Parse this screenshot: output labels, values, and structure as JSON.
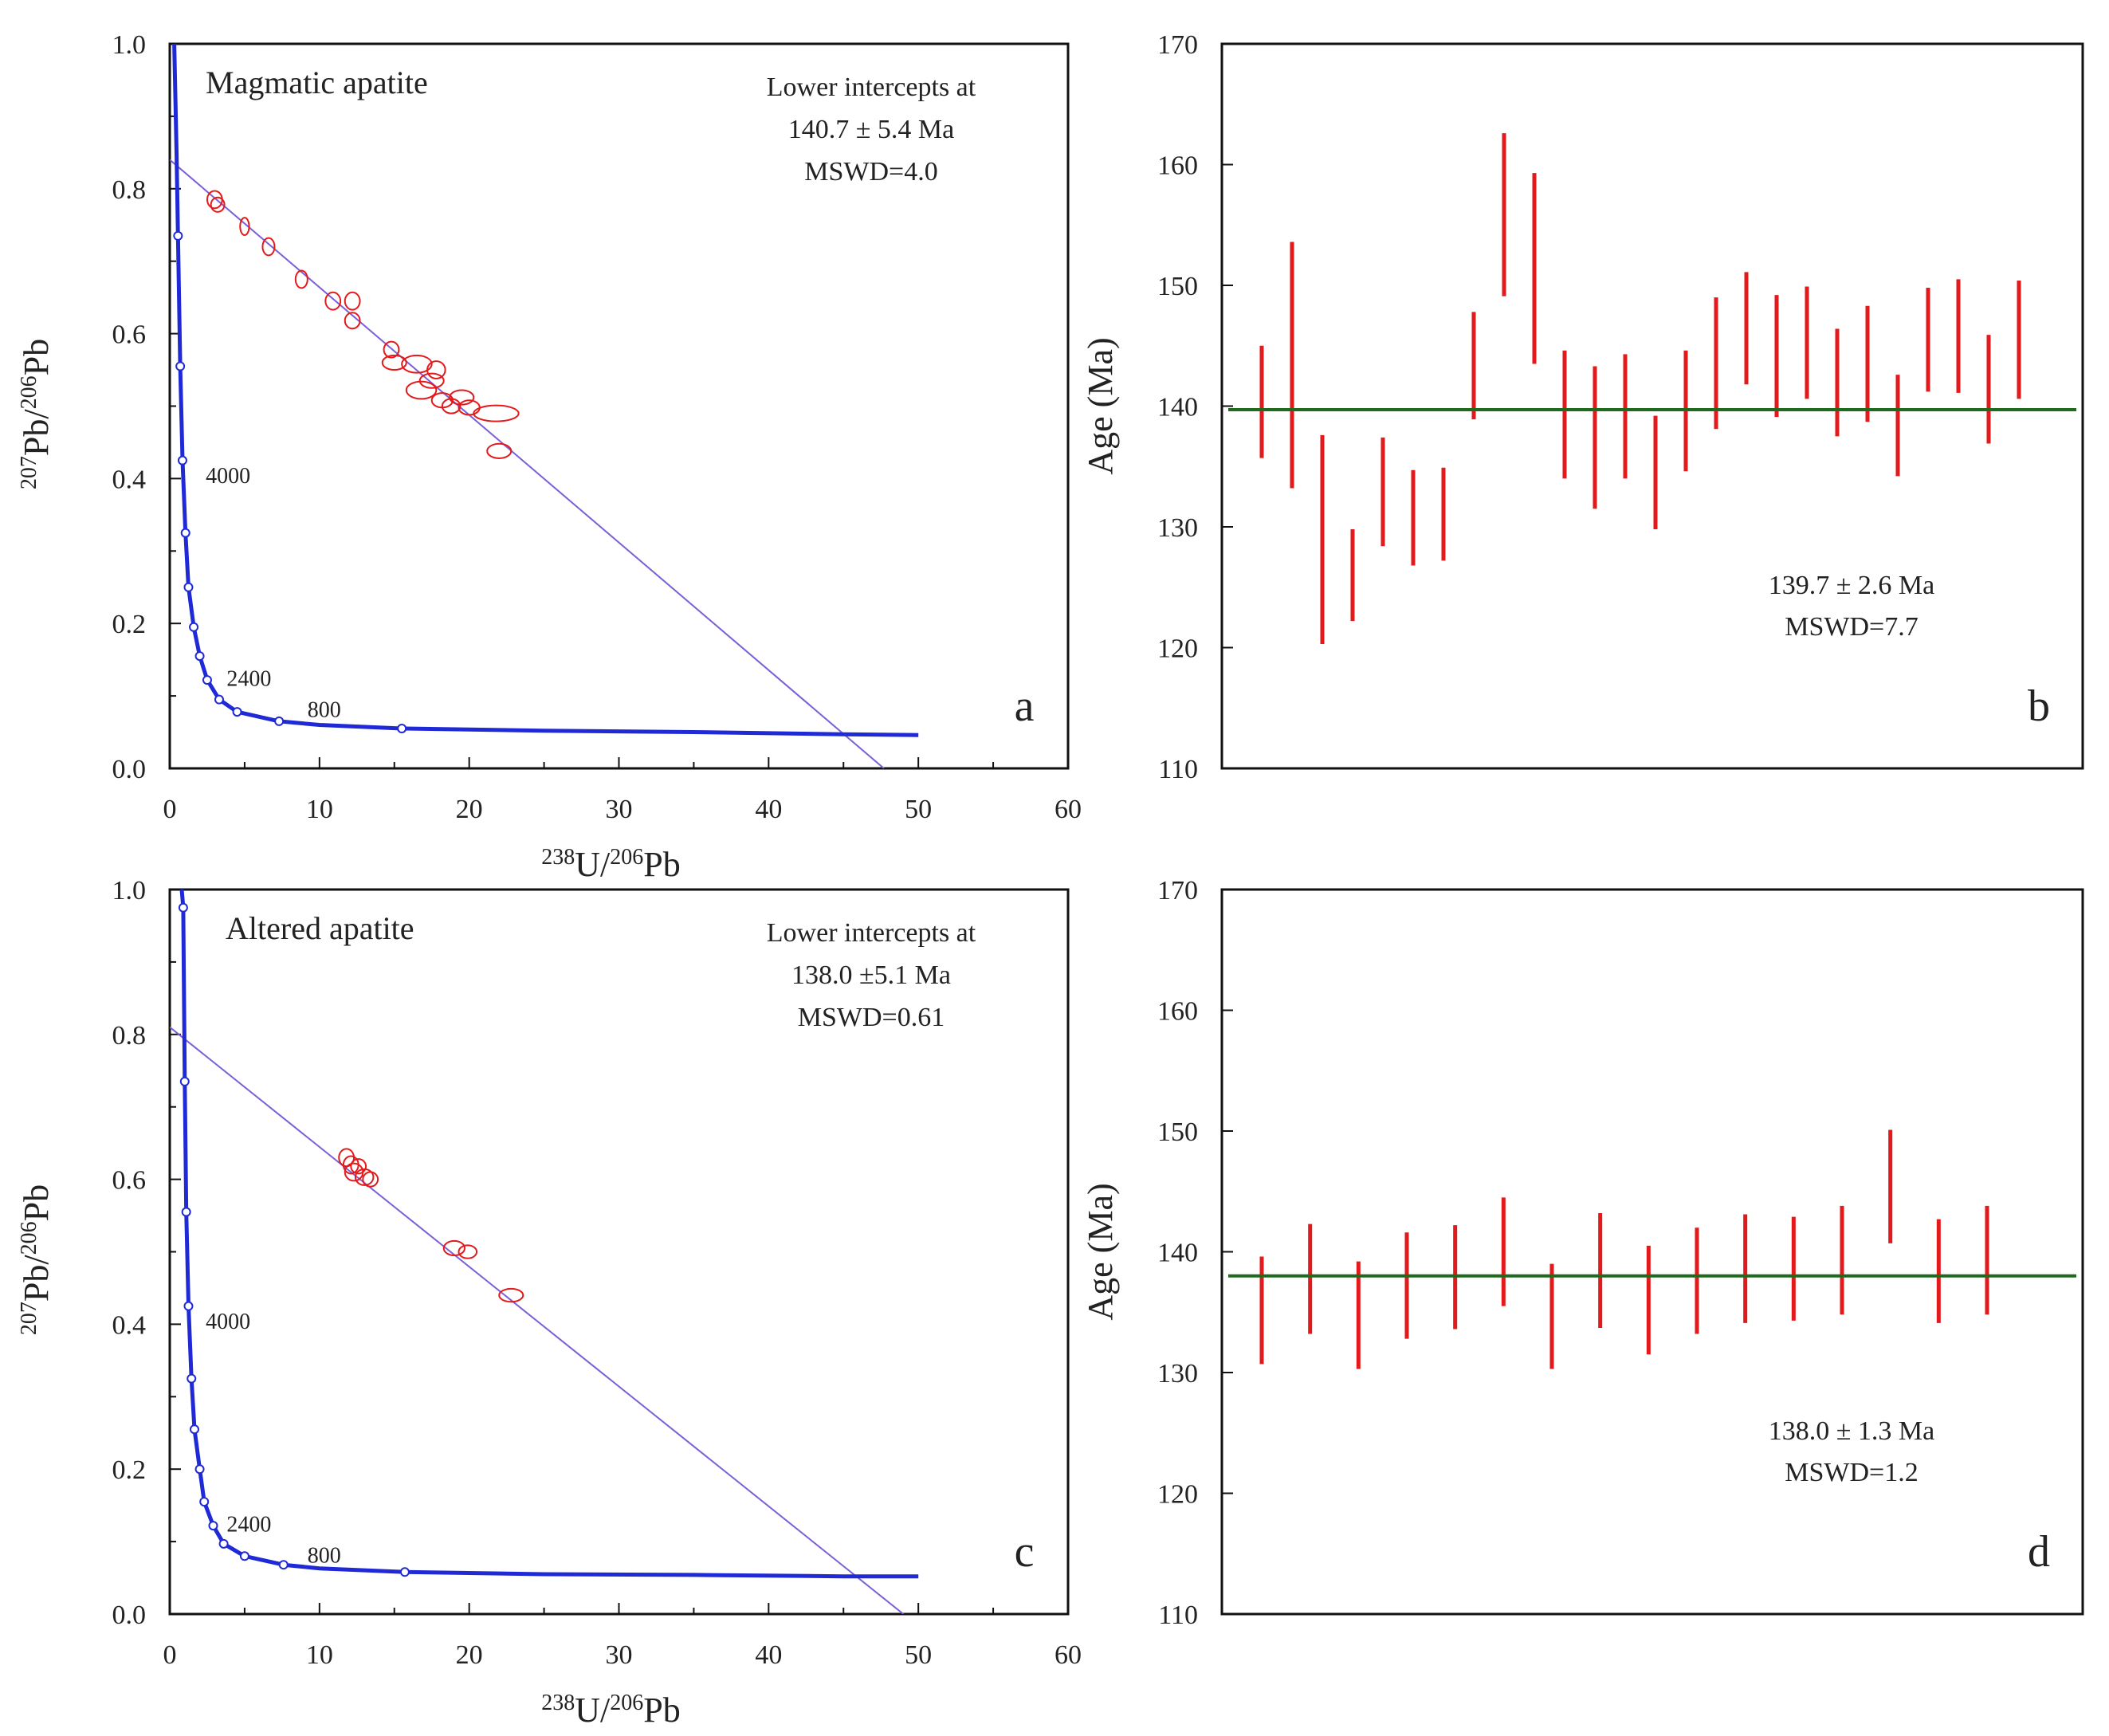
{
  "chart_data": [
    {
      "id": "a",
      "type": "scatter",
      "title": "Magmatic apatite",
      "panel_label": "a",
      "xlabel": {
        "sup1": "238",
        "main1": "U/",
        "sup2": "206",
        "main2": "Pb"
      },
      "ylabel": {
        "sup1": "207",
        "main1": "Pb/",
        "sup2": "206",
        "main2": "Pb"
      },
      "xlim": [
        0,
        60
      ],
      "ylim": [
        0,
        1.0
      ],
      "xticks": [
        0,
        10,
        20,
        30,
        40,
        50,
        60
      ],
      "yticks": [
        0.0,
        0.2,
        0.4,
        0.6,
        0.8,
        1.0
      ],
      "ytick_labels": [
        "0.0",
        "0.2",
        "0.4",
        "0.6",
        "0.8",
        "1.0"
      ],
      "xtick_labels": [
        "0",
        "10",
        "20",
        "30",
        "40",
        "50",
        "60"
      ],
      "annotation_lines": [
        "Lower intercepts at",
        "140.7 ± 5.4 Ma",
        "MSWD=4.0"
      ],
      "regression_line": {
        "y_intercept": 0.84,
        "x_at_zero": 47.7
      },
      "concordia_labels": [
        {
          "text": "4000",
          "x": 2.4,
          "y": 0.405
        },
        {
          "text": "2400",
          "x": 3.8,
          "y": 0.125
        },
        {
          "text": "800",
          "x": 9.2,
          "y": 0.082
        }
      ],
      "concordia_markers": [
        [
          0.55,
          0.735
        ],
        [
          0.7,
          0.555
        ],
        [
          0.85,
          0.425
        ],
        [
          1.05,
          0.325
        ],
        [
          1.25,
          0.25
        ],
        [
          1.6,
          0.195
        ],
        [
          2.0,
          0.155
        ],
        [
          2.5,
          0.122
        ],
        [
          3.3,
          0.095
        ],
        [
          4.5,
          0.078
        ],
        [
          7.3,
          0.065
        ],
        [
          15.5,
          0.055
        ]
      ],
      "concordia_curve": [
        [
          0.3,
          1.0
        ],
        [
          0.45,
          0.85
        ],
        [
          0.55,
          0.735
        ],
        [
          0.7,
          0.555
        ],
        [
          0.85,
          0.425
        ],
        [
          1.05,
          0.325
        ],
        [
          1.25,
          0.25
        ],
        [
          1.6,
          0.195
        ],
        [
          2.0,
          0.155
        ],
        [
          2.5,
          0.122
        ],
        [
          3.3,
          0.095
        ],
        [
          4.5,
          0.078
        ],
        [
          7.3,
          0.065
        ],
        [
          10.0,
          0.06
        ],
        [
          15.5,
          0.055
        ],
        [
          25,
          0.052
        ],
        [
          35,
          0.05
        ],
        [
          45,
          0.047
        ],
        [
          50,
          0.046
        ]
      ],
      "ellipses": [
        {
          "x": 3.0,
          "y": 0.785,
          "rx": 0.5,
          "ry": 0.012
        },
        {
          "x": 3.2,
          "y": 0.778,
          "rx": 0.45,
          "ry": 0.01
        },
        {
          "x": 5.0,
          "y": 0.748,
          "rx": 0.3,
          "ry": 0.012
        },
        {
          "x": 6.6,
          "y": 0.72,
          "rx": 0.4,
          "ry": 0.012
        },
        {
          "x": 8.8,
          "y": 0.675,
          "rx": 0.4,
          "ry": 0.012
        },
        {
          "x": 10.9,
          "y": 0.645,
          "rx": 0.5,
          "ry": 0.012
        },
        {
          "x": 12.2,
          "y": 0.645,
          "rx": 0.5,
          "ry": 0.012
        },
        {
          "x": 12.2,
          "y": 0.618,
          "rx": 0.5,
          "ry": 0.011
        },
        {
          "x": 14.8,
          "y": 0.578,
          "rx": 0.5,
          "ry": 0.011
        },
        {
          "x": 15.0,
          "y": 0.56,
          "rx": 0.8,
          "ry": 0.01
        },
        {
          "x": 16.5,
          "y": 0.558,
          "rx": 1.0,
          "ry": 0.012
        },
        {
          "x": 16.8,
          "y": 0.522,
          "rx": 1.0,
          "ry": 0.012
        },
        {
          "x": 17.5,
          "y": 0.535,
          "rx": 0.8,
          "ry": 0.01
        },
        {
          "x": 17.8,
          "y": 0.55,
          "rx": 0.6,
          "ry": 0.012
        },
        {
          "x": 18.2,
          "y": 0.508,
          "rx": 0.7,
          "ry": 0.01
        },
        {
          "x": 18.8,
          "y": 0.5,
          "rx": 0.6,
          "ry": 0.01
        },
        {
          "x": 19.5,
          "y": 0.512,
          "rx": 0.8,
          "ry": 0.01
        },
        {
          "x": 20.0,
          "y": 0.498,
          "rx": 0.7,
          "ry": 0.01
        },
        {
          "x": 21.8,
          "y": 0.49,
          "rx": 1.5,
          "ry": 0.011
        },
        {
          "x": 22.0,
          "y": 0.438,
          "rx": 0.8,
          "ry": 0.01
        }
      ]
    },
    {
      "id": "b",
      "type": "errorbar",
      "panel_label": "b",
      "ylabel": "Age (Ma)",
      "ylim": [
        110,
        170
      ],
      "yticks": [
        110,
        120,
        130,
        140,
        150,
        160,
        170
      ],
      "ytick_labels": [
        "110",
        "120",
        "130",
        "140",
        "150",
        "160",
        "170"
      ],
      "weighted_mean": 139.7,
      "annotation_lines": [
        "139.7 ± 2.6 Ma",
        "MSWD=7.7"
      ],
      "bars": [
        [
          135.7,
          145
        ],
        [
          133.2,
          153.6
        ],
        [
          120.3,
          137.6
        ],
        [
          122.2,
          129.8
        ],
        [
          128.4,
          137.4
        ],
        [
          126.8,
          134.7
        ],
        [
          127.2,
          134.9
        ],
        [
          138.9,
          147.8
        ],
        [
          149.1,
          162.6
        ],
        [
          143.5,
          159.3
        ],
        [
          134.0,
          144.6
        ],
        [
          131.5,
          143.3
        ],
        [
          134.0,
          144.3
        ],
        [
          129.8,
          139.2
        ],
        [
          134.6,
          144.6
        ],
        [
          138.1,
          149
        ],
        [
          141.8,
          151.1
        ],
        [
          139.1,
          149.2
        ],
        [
          140.6,
          149.9
        ],
        [
          137.5,
          146.4
        ],
        [
          138.7,
          148.3
        ],
        [
          134.2,
          142.6
        ],
        [
          141.2,
          149.8
        ],
        [
          141.1,
          150.5
        ],
        [
          136.9,
          145.9
        ],
        [
          140.6,
          150.4
        ]
      ]
    },
    {
      "id": "c",
      "type": "scatter",
      "title": "Altered apatite",
      "panel_label": "c",
      "xlabel": {
        "sup1": "238",
        "main1": "U/",
        "sup2": "206",
        "main2": "Pb"
      },
      "ylabel": {
        "sup1": "207",
        "main1": "Pb/",
        "sup2": "206",
        "main2": "Pb"
      },
      "xlim": [
        0,
        60
      ],
      "ylim": [
        0,
        1.0
      ],
      "xticks": [
        0,
        10,
        20,
        30,
        40,
        50,
        60
      ],
      "yticks": [
        0.0,
        0.2,
        0.4,
        0.6,
        0.8,
        1.0
      ],
      "ytick_labels": [
        "0.0",
        "0.2",
        "0.4",
        "0.6",
        "0.8",
        "1.0"
      ],
      "xtick_labels": [
        "0",
        "10",
        "20",
        "30",
        "40",
        "50",
        "60"
      ],
      "annotation_lines": [
        "Lower intercepts at",
        "138.0 ±5.1 Ma",
        "MSWD=0.61"
      ],
      "regression_line": {
        "y_intercept": 0.81,
        "x_at_zero": 49.0
      },
      "concordia_labels": [
        {
          "text": "4000",
          "x": 2.4,
          "y": 0.405
        },
        {
          "text": "2400",
          "x": 3.8,
          "y": 0.125
        },
        {
          "text": "800",
          "x": 9.2,
          "y": 0.082
        }
      ],
      "concordia_markers": [
        [
          0.9,
          0.975
        ],
        [
          1.0,
          0.735
        ],
        [
          1.1,
          0.555
        ],
        [
          1.25,
          0.425
        ],
        [
          1.45,
          0.325
        ],
        [
          1.65,
          0.255
        ],
        [
          2.0,
          0.2
        ],
        [
          2.3,
          0.155
        ],
        [
          2.9,
          0.122
        ],
        [
          3.6,
          0.097
        ],
        [
          5.0,
          0.08
        ],
        [
          7.6,
          0.068
        ],
        [
          15.7,
          0.058
        ]
      ],
      "concordia_curve": [
        [
          0.8,
          1.0
        ],
        [
          0.9,
          0.975
        ],
        [
          1.0,
          0.735
        ],
        [
          1.1,
          0.555
        ],
        [
          1.25,
          0.425
        ],
        [
          1.45,
          0.325
        ],
        [
          1.65,
          0.255
        ],
        [
          2.0,
          0.2
        ],
        [
          2.3,
          0.155
        ],
        [
          2.9,
          0.122
        ],
        [
          3.6,
          0.097
        ],
        [
          5.0,
          0.08
        ],
        [
          7.6,
          0.068
        ],
        [
          10.0,
          0.063
        ],
        [
          15.7,
          0.058
        ],
        [
          25,
          0.055
        ],
        [
          35,
          0.054
        ],
        [
          45,
          0.052
        ],
        [
          50,
          0.052
        ]
      ],
      "ellipses": [
        {
          "x": 11.8,
          "y": 0.63,
          "rx": 0.5,
          "ry": 0.012
        },
        {
          "x": 12.1,
          "y": 0.62,
          "rx": 0.5,
          "ry": 0.012
        },
        {
          "x": 12.3,
          "y": 0.61,
          "rx": 0.6,
          "ry": 0.012
        },
        {
          "x": 12.6,
          "y": 0.618,
          "rx": 0.5,
          "ry": 0.01
        },
        {
          "x": 13.0,
          "y": 0.603,
          "rx": 0.6,
          "ry": 0.011
        },
        {
          "x": 13.4,
          "y": 0.6,
          "rx": 0.5,
          "ry": 0.01
        },
        {
          "x": 19.0,
          "y": 0.505,
          "rx": 0.7,
          "ry": 0.01
        },
        {
          "x": 19.9,
          "y": 0.5,
          "rx": 0.6,
          "ry": 0.009
        },
        {
          "x": 22.8,
          "y": 0.44,
          "rx": 0.8,
          "ry": 0.009
        }
      ]
    },
    {
      "id": "d",
      "type": "errorbar",
      "panel_label": "d",
      "ylabel": "Age (Ma)",
      "ylim": [
        110,
        170
      ],
      "yticks": [
        110,
        120,
        130,
        140,
        150,
        160,
        170
      ],
      "ytick_labels": [
        "110",
        "120",
        "130",
        "140",
        "150",
        "160",
        "170"
      ],
      "weighted_mean": 138.0,
      "annotation_lines": [
        "138.0 ± 1.3 Ma",
        "MSWD=1.2"
      ],
      "bars": [
        [
          130.7,
          139.6
        ],
        [
          133.2,
          142.3
        ],
        [
          130.3,
          139.2
        ],
        [
          132.8,
          141.6
        ],
        [
          133.6,
          142.2
        ],
        [
          135.5,
          144.5
        ],
        [
          130.3,
          139.0
        ],
        [
          133.7,
          143.2
        ],
        [
          131.5,
          140.5
        ],
        [
          133.2,
          142.0
        ],
        [
          134.1,
          143.1
        ],
        [
          134.3,
          142.9
        ],
        [
          134.8,
          143.8
        ],
        [
          140.7,
          150.1
        ],
        [
          134.1,
          142.7
        ],
        [
          134.8,
          143.8
        ]
      ]
    }
  ],
  "colors": {
    "ellipse": "#e31a1c",
    "errorbar": "#e31a1c",
    "concordia": "#1f2ad6",
    "marker_fill": "#ffffff",
    "regression": "#7b5fd6",
    "mean_line": "#1e6b1e",
    "axis": "#111111"
  }
}
